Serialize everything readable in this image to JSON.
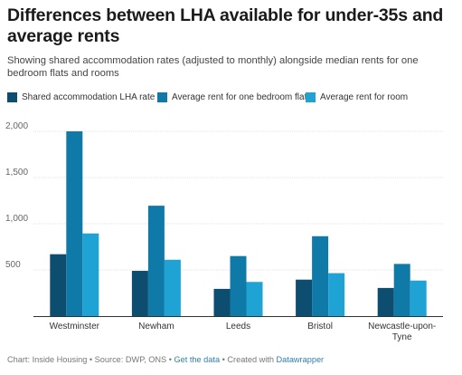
{
  "header": {
    "title": "Differences between LHA available for under-35s and average rents",
    "subtitle": "Showing shared accommodation rates (adjusted to monthly) alongside median rents for one bedroom flats and rooms"
  },
  "footer": {
    "source": "Chart: Inside Housing • Source: DWP, ONS • ",
    "get_data": "Get the data",
    "created_with": " • Created with ",
    "tool": "Datawrapper"
  },
  "chart_data": {
    "type": "bar",
    "title": "Differences between LHA available for under-35s and average rents",
    "subtitle": "Showing shared accommodation rates (adjusted to monthly) alongside median rents for one bedroom flats and rooms",
    "categories": [
      "Westminster",
      "Newham",
      "Leeds",
      "Bristol",
      "Newcastle-upon-Tyne"
    ],
    "category_lines": [
      [
        "Westminster"
      ],
      [
        "Newham"
      ],
      [
        "Leeds"
      ],
      [
        "Bristol"
      ],
      [
        "Newcastle-upon-",
        "Tyne"
      ]
    ],
    "series": [
      {
        "name": "Shared accommodation LHA rate",
        "color": "#0d4d70",
        "values": [
          670,
          490,
          295,
          395,
          305
        ]
      },
      {
        "name": "Average rent for one bedroom flat",
        "color": "#0f7aa8",
        "values": [
          2000,
          1195,
          650,
          865,
          565
        ]
      },
      {
        "name": "Average rent for room",
        "color": "#1ea3d4",
        "values": [
          895,
          610,
          370,
          465,
          385
        ]
      }
    ],
    "ylim": [
      0,
      2000
    ],
    "yticks": [
      0,
      500,
      1000,
      1500,
      2000
    ],
    "ytick_labels": [
      "",
      "500",
      "1,000",
      "1,500",
      "2,000"
    ],
    "grid": true,
    "legend": "top-left"
  }
}
